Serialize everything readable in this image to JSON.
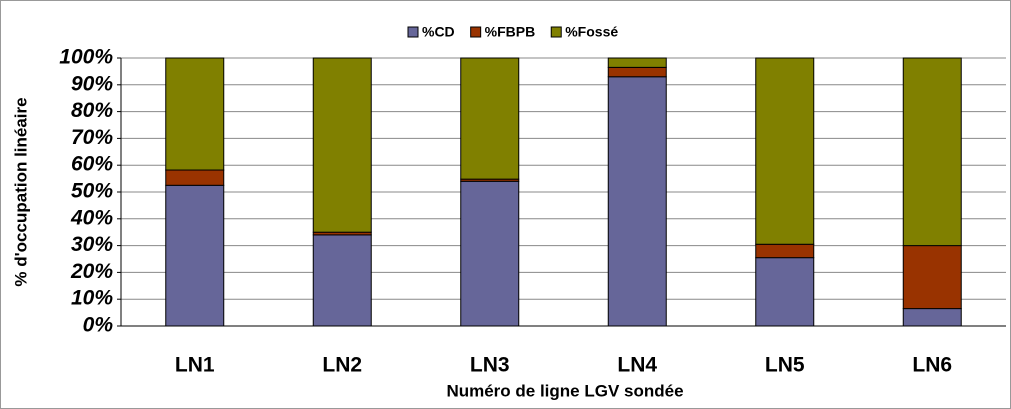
{
  "chart_data": {
    "type": "stacked_bar",
    "y_label": "% d'occupation linéaire",
    "x_label": "Numéro de ligne LGV sondée",
    "categories": [
      "LN1",
      "LN2",
      "LN3",
      "LN4",
      "LN5",
      "LN6"
    ],
    "series": [
      {
        "name": "%CD",
        "color": "#666699",
        "values": [
          52.5,
          34,
          54,
          93,
          25.5,
          6.5
        ]
      },
      {
        "name": "%FBPB",
        "color": "#993300",
        "values": [
          5.7,
          1,
          0.8,
          3.5,
          5,
          23.5
        ]
      },
      {
        "name": "%Fossé",
        "color": "#808000",
        "values": [
          41.8,
          65,
          45.2,
          3.5,
          69.5,
          70
        ]
      }
    ],
    "ylim": [
      0,
      100
    ],
    "yticks": [
      {
        "value": 0,
        "label": "0%"
      },
      {
        "value": 10,
        "label": "10%"
      },
      {
        "value": 20,
        "label": "20%"
      },
      {
        "value": 30,
        "label": "30%"
      },
      {
        "value": 40,
        "label": "40%"
      },
      {
        "value": 50,
        "label": "50%"
      },
      {
        "value": 60,
        "label": "60%"
      },
      {
        "value": 70,
        "label": "70%"
      },
      {
        "value": 80,
        "label": "80%"
      },
      {
        "value": 90,
        "label": "90%"
      },
      {
        "value": 100,
        "label": "100%"
      }
    ],
    "grid": true,
    "legend": "top"
  }
}
